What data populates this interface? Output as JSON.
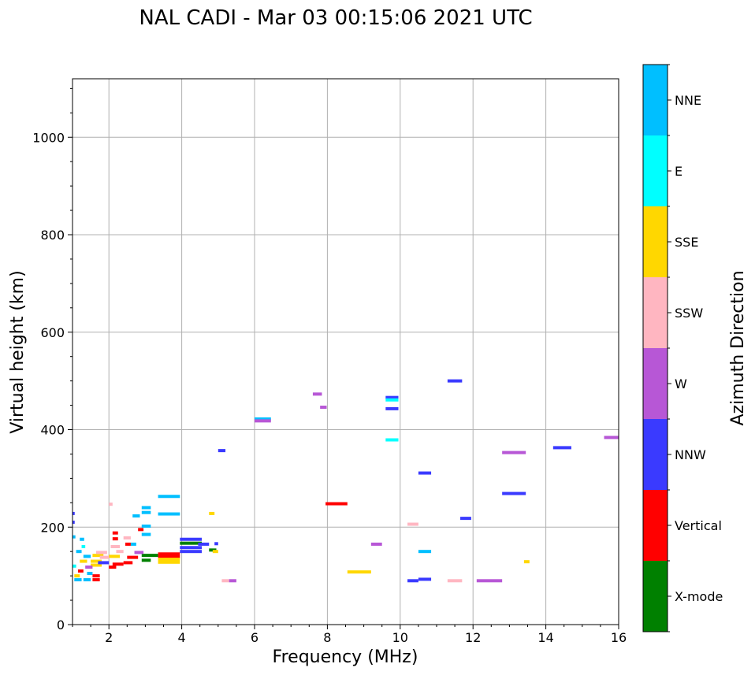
{
  "chart_data": {
    "type": "scatter",
    "title": "NAL CADI - Mar 03 00:15:06 2021 UTC",
    "xlabel": "Frequency (MHz)",
    "ylabel": "Virtual height (km)",
    "xlim": [
      1,
      16
    ],
    "ylim": [
      0,
      1120
    ],
    "xticks": [
      2,
      4,
      6,
      8,
      10,
      12,
      14,
      16
    ],
    "yticks": [
      0,
      200,
      400,
      600,
      800,
      1000
    ],
    "grid": true,
    "colorbar": {
      "label": "Azimuth Direction",
      "categories": [
        {
          "name": "X-mode",
          "color": "#008000"
        },
        {
          "name": "Vertical",
          "color": "#ff0000"
        },
        {
          "name": "NNW",
          "color": "#3a3aff"
        },
        {
          "name": "W",
          "color": "#b757d6"
        },
        {
          "name": "SSW",
          "color": "#ffb6c1"
        },
        {
          "name": "SSE",
          "color": "#ffd700"
        },
        {
          "name": "E",
          "color": "#00ffff"
        },
        {
          "name": "NNE",
          "color": "#00bfff"
        }
      ]
    },
    "segments": [
      {
        "x1": 6.0,
        "x2": 6.45,
        "y": 422,
        "dir": "NNE"
      },
      {
        "x1": 6.0,
        "x2": 6.45,
        "y": 418,
        "dir": "W"
      },
      {
        "x1": 7.6,
        "x2": 7.85,
        "y": 473,
        "dir": "W"
      },
      {
        "x1": 7.8,
        "x2": 7.98,
        "y": 446,
        "dir": "W"
      },
      {
        "x1": 9.6,
        "x2": 9.95,
        "y": 466,
        "dir": "NNW"
      },
      {
        "x1": 9.6,
        "x2": 9.95,
        "y": 461,
        "dir": "E"
      },
      {
        "x1": 9.6,
        "x2": 9.95,
        "y": 443,
        "dir": "NNW"
      },
      {
        "x1": 9.6,
        "x2": 9.95,
        "y": 379,
        "dir": "E"
      },
      {
        "x1": 11.3,
        "x2": 11.7,
        "y": 500,
        "dir": "NNW"
      },
      {
        "x1": 15.6,
        "x2": 16.0,
        "y": 384,
        "dir": "W"
      },
      {
        "x1": 14.2,
        "x2": 14.7,
        "y": 363,
        "dir": "NNW"
      },
      {
        "x1": 12.8,
        "x2": 13.45,
        "y": 353,
        "dir": "W"
      },
      {
        "x1": 10.5,
        "x2": 10.85,
        "y": 311,
        "dir": "NNW"
      },
      {
        "x1": 12.8,
        "x2": 13.45,
        "y": 269,
        "dir": "NNW"
      },
      {
        "x1": 7.95,
        "x2": 8.55,
        "y": 248,
        "dir": "Vertical"
      },
      {
        "x1": 11.65,
        "x2": 11.95,
        "y": 218,
        "dir": "NNW"
      },
      {
        "x1": 10.2,
        "x2": 10.5,
        "y": 206,
        "dir": "SSW"
      },
      {
        "x1": 9.2,
        "x2": 9.5,
        "y": 165,
        "dir": "W"
      },
      {
        "x1": 10.5,
        "x2": 10.85,
        "y": 150,
        "dir": "NNE"
      },
      {
        "x1": 8.55,
        "x2": 9.2,
        "y": 108,
        "dir": "SSE"
      },
      {
        "x1": 13.4,
        "x2": 13.55,
        "y": 129,
        "dir": "SSE"
      },
      {
        "x1": 10.2,
        "x2": 10.5,
        "y": 90,
        "dir": "NNW"
      },
      {
        "x1": 10.5,
        "x2": 10.85,
        "y": 93,
        "dir": "NNW"
      },
      {
        "x1": 11.3,
        "x2": 11.7,
        "y": 90,
        "dir": "SSW"
      },
      {
        "x1": 12.1,
        "x2": 12.8,
        "y": 90,
        "dir": "W"
      },
      {
        "x1": 5.1,
        "x2": 5.3,
        "y": 90,
        "dir": "SSW"
      },
      {
        "x1": 5.3,
        "x2": 5.5,
        "y": 90,
        "dir": "W"
      },
      {
        "x1": 5.0,
        "x2": 5.2,
        "y": 357,
        "dir": "NNW"
      },
      {
        "x1": 3.35,
        "x2": 3.95,
        "y": 263,
        "dir": "NNE"
      },
      {
        "x1": 3.35,
        "x2": 3.95,
        "y": 227,
        "dir": "NNE"
      },
      {
        "x1": 2.9,
        "x2": 3.15,
        "y": 240,
        "dir": "NNE"
      },
      {
        "x1": 2.9,
        "x2": 3.15,
        "y": 230,
        "dir": "NNE"
      },
      {
        "x1": 2.9,
        "x2": 3.15,
        "y": 202,
        "dir": "NNE"
      },
      {
        "x1": 2.9,
        "x2": 3.15,
        "y": 185,
        "dir": "NNE"
      },
      {
        "x1": 2.65,
        "x2": 2.85,
        "y": 223,
        "dir": "NNE"
      },
      {
        "x1": 2.0,
        "x2": 2.1,
        "y": 247,
        "dir": "SSW"
      },
      {
        "x1": 4.75,
        "x2": 4.9,
        "y": 228,
        "dir": "SSE"
      },
      {
        "x1": 3.95,
        "x2": 4.55,
        "y": 175,
        "dir": "NNW"
      },
      {
        "x1": 3.95,
        "x2": 4.55,
        "y": 167,
        "dir": "X-mode"
      },
      {
        "x1": 3.95,
        "x2": 4.55,
        "y": 158,
        "dir": "NNW"
      },
      {
        "x1": 3.95,
        "x2": 4.55,
        "y": 150,
        "dir": "NNW"
      },
      {
        "x1": 4.45,
        "x2": 4.75,
        "y": 165,
        "dir": "NNW"
      },
      {
        "x1": 4.9,
        "x2": 5.0,
        "y": 166,
        "dir": "NNW"
      },
      {
        "x1": 4.75,
        "x2": 4.95,
        "y": 153,
        "dir": "X-mode"
      },
      {
        "x1": 4.85,
        "x2": 5.0,
        "y": 150,
        "dir": "SSE"
      },
      {
        "x1": 3.35,
        "x2": 3.95,
        "y": 145,
        "dir": "Vertical"
      },
      {
        "x1": 3.35,
        "x2": 3.95,
        "y": 139,
        "dir": "Vertical"
      },
      {
        "x1": 3.35,
        "x2": 3.95,
        "y": 134,
        "dir": "SSE"
      },
      {
        "x1": 3.35,
        "x2": 3.95,
        "y": 128,
        "dir": "SSE"
      },
      {
        "x1": 2.9,
        "x2": 3.35,
        "y": 142,
        "dir": "X-mode"
      },
      {
        "x1": 2.9,
        "x2": 3.15,
        "y": 132,
        "dir": "X-mode"
      },
      {
        "x1": 2.8,
        "x2": 2.95,
        "y": 195,
        "dir": "Vertical"
      },
      {
        "x1": 2.7,
        "x2": 2.95,
        "y": 148,
        "dir": "W"
      },
      {
        "x1": 2.5,
        "x2": 2.8,
        "y": 138,
        "dir": "Vertical"
      },
      {
        "x1": 2.4,
        "x2": 2.65,
        "y": 127,
        "dir": "Vertical"
      },
      {
        "x1": 2.1,
        "x2": 2.4,
        "y": 124,
        "dir": "Vertical"
      },
      {
        "x1": 2.0,
        "x2": 2.2,
        "y": 118,
        "dir": "Vertical"
      },
      {
        "x1": 2.6,
        "x2": 2.75,
        "y": 165,
        "dir": "NNE"
      },
      {
        "x1": 2.05,
        "x2": 2.3,
        "y": 160,
        "dir": "SSW"
      },
      {
        "x1": 2.4,
        "x2": 2.6,
        "y": 178,
        "dir": "SSW"
      },
      {
        "x1": 2.45,
        "x2": 2.6,
        "y": 165,
        "dir": "Vertical"
      },
      {
        "x1": 2.1,
        "x2": 2.25,
        "y": 188,
        "dir": "Vertical"
      },
      {
        "x1": 2.1,
        "x2": 2.25,
        "y": 176,
        "dir": "Vertical"
      },
      {
        "x1": 2.2,
        "x2": 2.4,
        "y": 150,
        "dir": "SSW"
      },
      {
        "x1": 2.0,
        "x2": 2.3,
        "y": 140,
        "dir": "SSE"
      },
      {
        "x1": 1.55,
        "x2": 1.85,
        "y": 142,
        "dir": "SSE"
      },
      {
        "x1": 1.5,
        "x2": 1.8,
        "y": 130,
        "dir": "SSE"
      },
      {
        "x1": 1.5,
        "x2": 1.8,
        "y": 122,
        "dir": "SSE"
      },
      {
        "x1": 1.75,
        "x2": 2.0,
        "y": 138,
        "dir": "SSW"
      },
      {
        "x1": 1.7,
        "x2": 2.0,
        "y": 127,
        "dir": "NNW"
      },
      {
        "x1": 1.65,
        "x2": 1.95,
        "y": 148,
        "dir": "SSW"
      },
      {
        "x1": 1.3,
        "x2": 1.5,
        "y": 140,
        "dir": "NNE"
      },
      {
        "x1": 1.2,
        "x2": 1.4,
        "y": 130,
        "dir": "SSE"
      },
      {
        "x1": 1.35,
        "x2": 1.55,
        "y": 118,
        "dir": "W"
      },
      {
        "x1": 1.15,
        "x2": 1.3,
        "y": 110,
        "dir": "Vertical"
      },
      {
        "x1": 1.55,
        "x2": 1.75,
        "y": 100,
        "dir": "Vertical"
      },
      {
        "x1": 1.55,
        "x2": 1.75,
        "y": 92,
        "dir": "Vertical"
      },
      {
        "x1": 1.05,
        "x2": 1.25,
        "y": 92,
        "dir": "NNE"
      },
      {
        "x1": 1.3,
        "x2": 1.5,
        "y": 92,
        "dir": "NNE"
      },
      {
        "x1": 1.0,
        "x2": 1.1,
        "y": 120,
        "dir": "E"
      },
      {
        "x1": 1.1,
        "x2": 1.25,
        "y": 150,
        "dir": "NNE"
      },
      {
        "x1": 1.0,
        "x2": 1.08,
        "y": 180,
        "dir": "NNE"
      },
      {
        "x1": 1.0,
        "x2": 1.06,
        "y": 210,
        "dir": "NNW"
      },
      {
        "x1": 1.0,
        "x2": 1.06,
        "y": 228,
        "dir": "NNW"
      },
      {
        "x1": 1.2,
        "x2": 1.32,
        "y": 175,
        "dir": "NNE"
      },
      {
        "x1": 1.25,
        "x2": 1.35,
        "y": 160,
        "dir": "E"
      },
      {
        "x1": 1.4,
        "x2": 1.55,
        "y": 105,
        "dir": "NNE"
      },
      {
        "x1": 1.05,
        "x2": 1.2,
        "y": 100,
        "dir": "SSE"
      }
    ]
  }
}
